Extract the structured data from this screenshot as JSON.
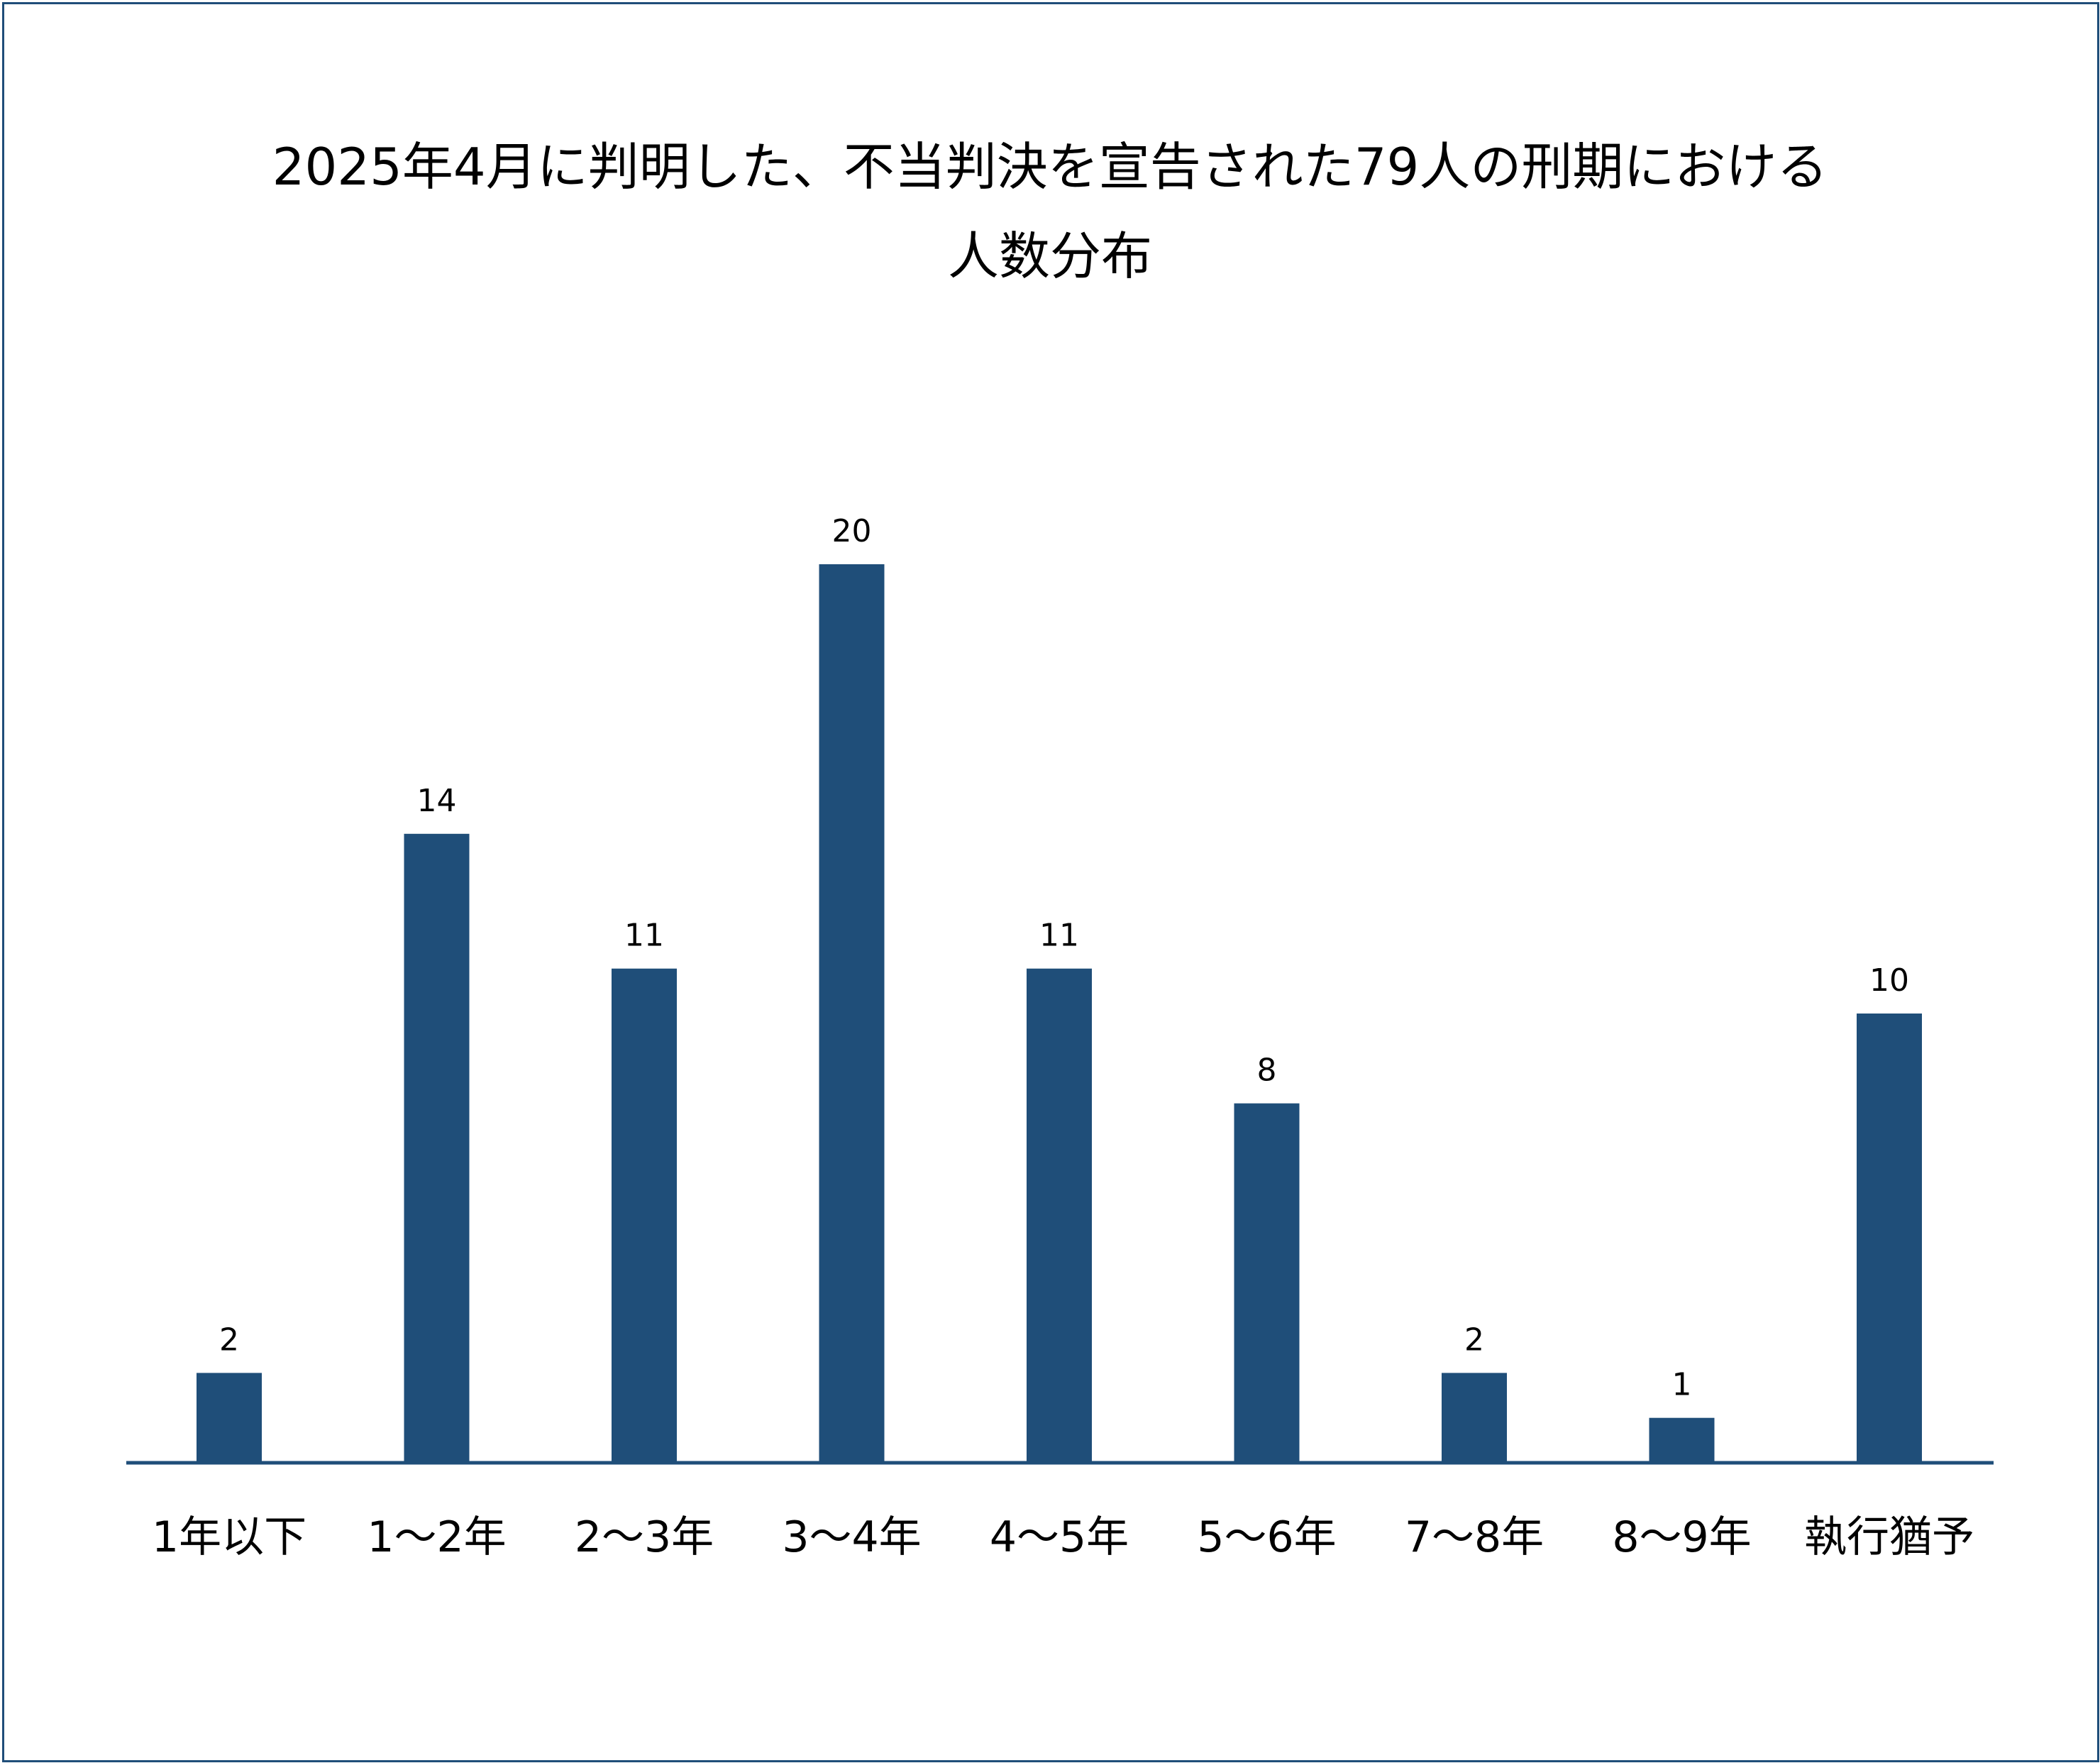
{
  "chart_data": {
    "type": "bar",
    "title_lines": [
      "2025年4月に判明した、不当判決を宣告された79人の刑期における",
      "人数分布"
    ],
    "categories": [
      "1年以下",
      "1～2年",
      "2～3年",
      "3～4年",
      "4～5年",
      "5～6年",
      "7～8年",
      "8～9年",
      "執行猶予"
    ],
    "values": [
      2,
      14,
      11,
      20,
      11,
      8,
      2,
      1,
      10
    ],
    "data_labels": [
      "2",
      "14",
      "11",
      "20",
      "11",
      "8",
      "2",
      "1",
      "10"
    ],
    "ylim": [
      0,
      20
    ],
    "grid": false,
    "legend": "none",
    "colors": {
      "bar": "#1f4e79",
      "axis": "#1f4e79",
      "border": "#1f4e79"
    }
  }
}
